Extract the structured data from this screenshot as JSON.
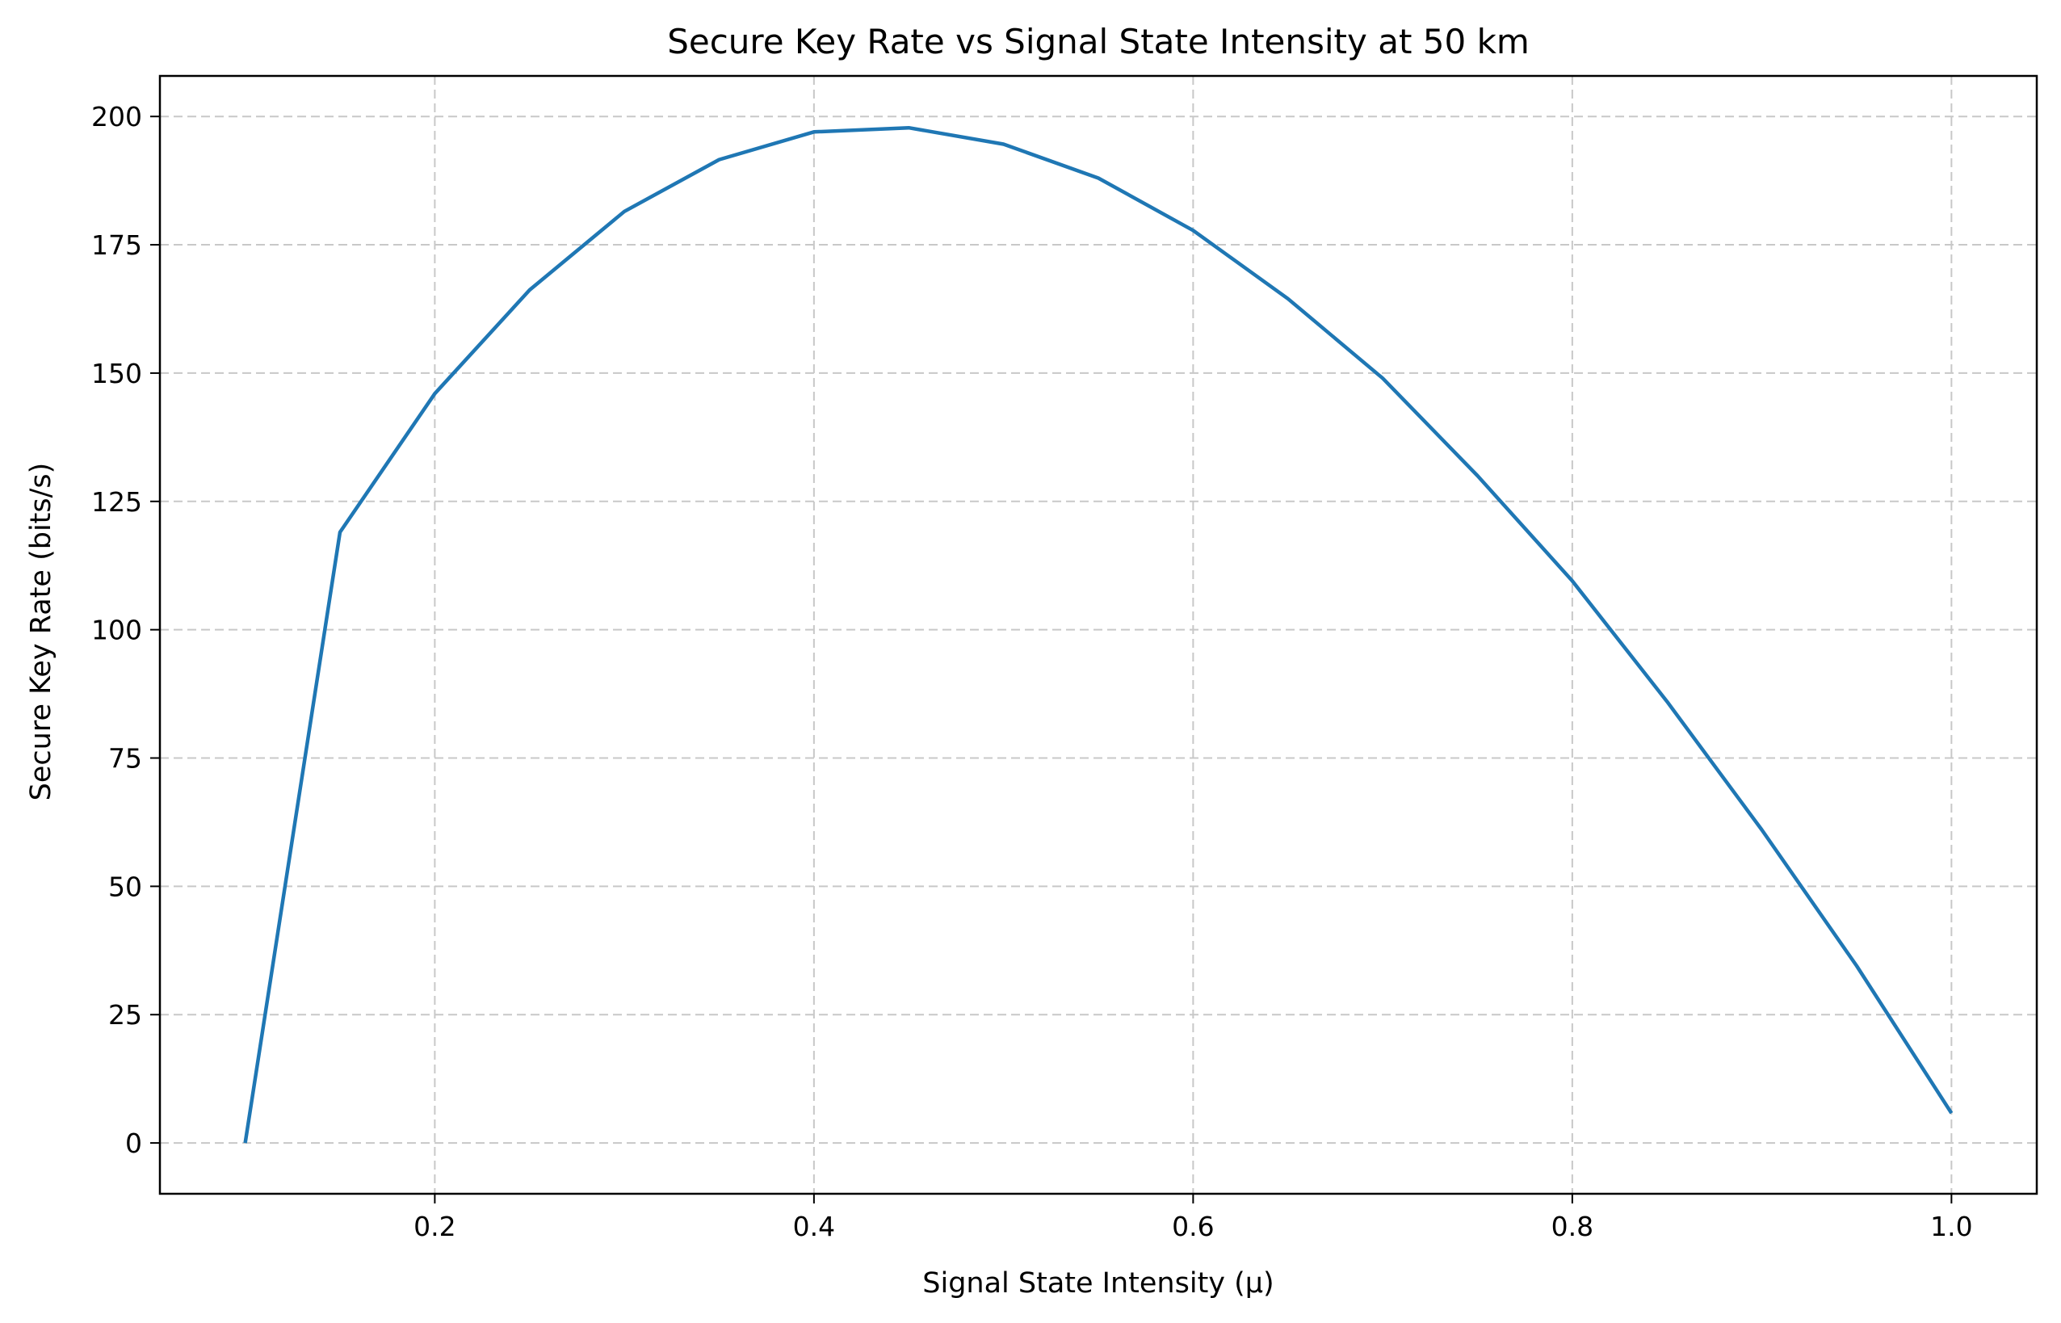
{
  "chart_data": {
    "type": "line",
    "title": "Secure Key Rate vs Signal State Intensity at 50 km",
    "xlabel": "Signal State Intensity (μ)",
    "ylabel": "Secure Key Rate (bits/s)",
    "xlim": [
      0.055,
      1.045
    ],
    "ylim": [
      -9.9,
      207.9
    ],
    "xticks": [
      0.2,
      0.4,
      0.6,
      0.8,
      1.0
    ],
    "xtick_labels": [
      "0.2",
      "0.4",
      "0.6",
      "0.8",
      "1.0"
    ],
    "yticks": [
      0,
      25,
      50,
      75,
      100,
      125,
      150,
      175,
      200
    ],
    "ytick_labels": [
      "0",
      "25",
      "50",
      "75",
      "100",
      "125",
      "150",
      "175",
      "200"
    ],
    "grid": true,
    "series": [
      {
        "color": "#1f77b4",
        "x": [
          0.1,
          0.15,
          0.2,
          0.25,
          0.3,
          0.35,
          0.4,
          0.45,
          0.5,
          0.55,
          0.6,
          0.65,
          0.7,
          0.75,
          0.8,
          0.85,
          0.9,
          0.95,
          1.0
        ],
        "y": [
          0,
          119,
          146,
          166.2,
          181.5,
          191.6,
          197,
          197.8,
          194.6,
          188,
          177.8,
          164.5,
          149,
          130,
          109.5,
          86,
          61,
          34.5,
          5.8
        ]
      }
    ]
  }
}
